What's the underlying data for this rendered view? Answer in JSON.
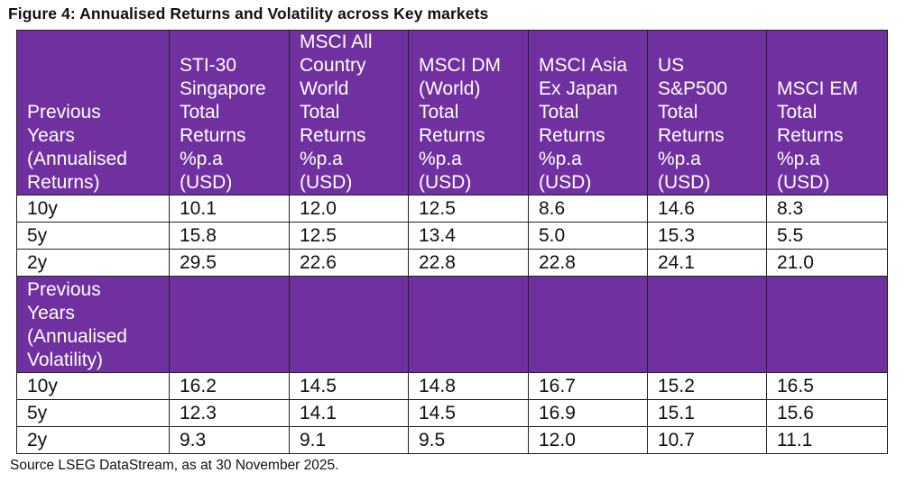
{
  "title": "Figure 4: Annualised Returns and Volatility across Key markets",
  "header_row": {
    "first_cell_lines": [
      "Previous",
      "Years",
      "(Annualised",
      "Returns)"
    ],
    "columns": [
      {
        "lines": [
          "STI-30",
          "Singapore",
          "Total",
          "Returns",
          "%p.a",
          "(USD)"
        ]
      },
      {
        "lines": [
          "MSCI All",
          "Country",
          "World",
          "Total",
          "Returns",
          "%p.a",
          "(USD)"
        ]
      },
      {
        "lines": [
          "MSCI DM",
          "(World)",
          "Total",
          "Returns",
          "%p.a",
          "(USD)"
        ]
      },
      {
        "lines": [
          "MSCI Asia",
          "Ex Japan",
          "Total",
          "Returns",
          "%p.a",
          "(USD)"
        ]
      },
      {
        "lines": [
          "US",
          "S&P500",
          "Total",
          "Returns",
          "%p.a",
          "(USD)"
        ]
      },
      {
        "lines": [
          "MSCI EM",
          "Total",
          "Returns",
          "%p.a",
          "(USD)"
        ]
      }
    ]
  },
  "returns_rows": [
    {
      "period": "10y",
      "values": [
        "10.1",
        "12.0",
        "12.5",
        "8.6",
        "14.6",
        "8.3"
      ]
    },
    {
      "period": "5y",
      "values": [
        "15.8",
        "12.5",
        "13.4",
        "5.0",
        "15.3",
        "5.5"
      ]
    },
    {
      "period": "2y",
      "values": [
        "29.5",
        "22.6",
        "22.8",
        "22.8",
        "24.1",
        "21.0"
      ]
    }
  ],
  "volatility_header": {
    "first_cell_lines": [
      "Previous",
      "Years",
      "(Annualised",
      "Volatility)"
    ]
  },
  "volatility_rows": [
    {
      "period": "10y",
      "values": [
        "16.2",
        "14.5",
        "14.8",
        "16.7",
        "15.2",
        "16.5"
      ]
    },
    {
      "period": "5y",
      "values": [
        "12.3",
        "14.1",
        "14.5",
        "16.9",
        "15.1",
        "15.6"
      ]
    },
    {
      "period": "2y",
      "values": [
        "9.3",
        "9.1",
        "9.5",
        "12.0",
        "10.7",
        "11.1"
      ]
    }
  ],
  "source": "Source LSEG DataStream, as at 30 November 2025.",
  "colors": {
    "header_bg": "#7030a0",
    "header_text": "#ffffff",
    "border": "#222222"
  }
}
